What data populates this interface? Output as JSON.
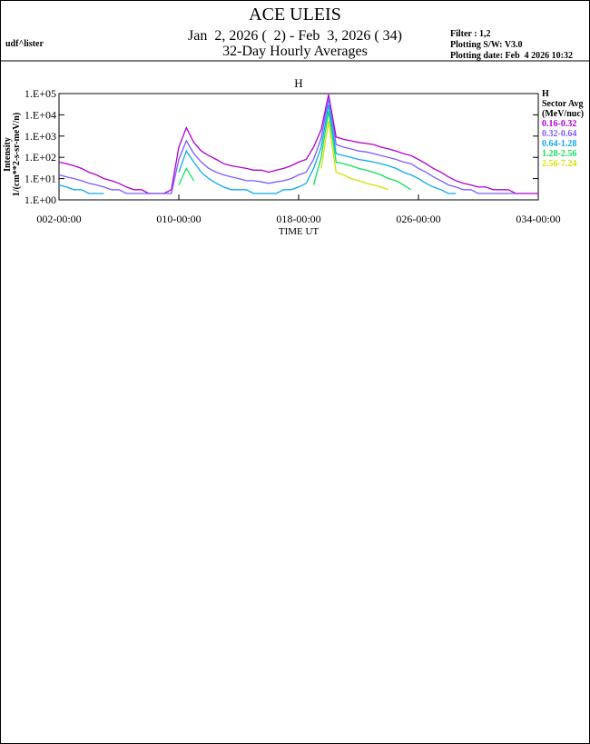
{
  "header": {
    "title": "ACE ULEIS",
    "date_range": "Jan  2, 2026 (  2) - Feb  3, 2026 ( 34)",
    "subtitle": "32-Day Hourly Averages",
    "user": "udf^lister",
    "filter": "Filter : 1,2",
    "software": "Plotting S/W: V3.0",
    "plot_date": "Plotting date: Feb  4 2026 10:32"
  },
  "chart_data": {
    "type": "line",
    "title": "H",
    "log_y": true,
    "y_label": [
      "Intensity",
      "1/(cm**2-s-sr-meV/n)"
    ],
    "x_label": "TIME UT",
    "legend_title": [
      "H",
      "Sector Avg",
      "(MeV/nuc)"
    ],
    "legend_position": "right",
    "xlim": [
      2,
      34
    ],
    "ylim": [
      1,
      100000
    ],
    "xticks": [
      {
        "value": 2,
        "label": "002-00:00"
      },
      {
        "value": 10,
        "label": "010-00:00"
      },
      {
        "value": 18,
        "label": "018-00:00"
      },
      {
        "value": 26,
        "label": "026-00:00"
      },
      {
        "value": 34,
        "label": "034-00:00"
      }
    ],
    "yticks": [
      {
        "value": 1,
        "label": "1.E+00"
      },
      {
        "value": 10,
        "label": "1.E+01"
      },
      {
        "value": 100,
        "label": "1.E+02"
      },
      {
        "value": 1000,
        "label": "1.E+03"
      },
      {
        "value": 10000,
        "label": "1.E+04"
      },
      {
        "value": 100000,
        "label": "1.E+05"
      }
    ],
    "x": [
      2,
      2.5,
      3,
      3.5,
      4,
      4.5,
      5,
      5.5,
      6,
      6.5,
      7,
      7.5,
      8,
      8.5,
      9,
      9.5,
      10,
      10.5,
      11,
      11.5,
      12,
      12.5,
      13,
      13.5,
      14,
      14.5,
      15,
      15.5,
      16,
      16.5,
      17,
      17.5,
      18,
      18.5,
      19,
      19.5,
      20,
      20.5,
      21,
      21.5,
      22,
      22.5,
      23,
      23.5,
      24,
      24.5,
      25,
      25.5,
      26,
      26.5,
      27,
      27.5,
      28,
      28.5,
      29,
      29.5,
      30,
      30.5,
      31,
      31.5,
      32,
      32.5,
      33,
      33.5,
      34
    ],
    "series": [
      {
        "name": "0.16-0.32",
        "color": "#b000d0",
        "values": [
          60,
          50,
          40,
          30,
          20,
          15,
          10,
          8,
          6,
          4,
          3,
          3,
          2,
          2,
          2,
          3,
          300,
          2500,
          500,
          200,
          120,
          80,
          50,
          40,
          35,
          30,
          25,
          25,
          20,
          25,
          30,
          40,
          60,
          80,
          300,
          2000,
          90000,
          900,
          700,
          600,
          500,
          450,
          400,
          300,
          250,
          200,
          150,
          120,
          80,
          50,
          30,
          20,
          12,
          8,
          6,
          5,
          4,
          4,
          3,
          3,
          3,
          2,
          2,
          2,
          2
        ]
      },
      {
        "name": "0.32-0.64",
        "color": "#7a5cff",
        "values": [
          15,
          12,
          10,
          8,
          6,
          5,
          4,
          3,
          3,
          2,
          2,
          2,
          2,
          2,
          2,
          2,
          80,
          600,
          150,
          60,
          30,
          20,
          15,
          12,
          10,
          8,
          8,
          7,
          6,
          7,
          8,
          10,
          15,
          20,
          80,
          800,
          60000,
          400,
          300,
          250,
          200,
          180,
          150,
          120,
          100,
          80,
          60,
          50,
          30,
          20,
          12,
          8,
          5,
          4,
          3,
          3,
          2,
          2,
          2,
          2,
          2,
          2,
          null,
          null,
          null
        ]
      },
      {
        "name": "0.64-1.28",
        "color": "#10a8f0",
        "values": [
          5,
          4,
          3,
          3,
          2,
          2,
          2,
          null,
          null,
          null,
          null,
          null,
          null,
          null,
          null,
          null,
          20,
          200,
          60,
          20,
          10,
          6,
          4,
          3,
          3,
          3,
          2,
          2,
          2,
          2,
          3,
          3,
          4,
          6,
          30,
          300,
          30000,
          150,
          120,
          100,
          80,
          70,
          60,
          50,
          40,
          30,
          20,
          15,
          10,
          6,
          4,
          3,
          2,
          2,
          null,
          null,
          null,
          null,
          null,
          null,
          null,
          null,
          null,
          null,
          null
        ]
      },
      {
        "name": "1.28-2.56",
        "color": "#10e060",
        "values": [
          null,
          null,
          null,
          null,
          null,
          null,
          null,
          null,
          null,
          null,
          null,
          null,
          null,
          null,
          null,
          null,
          5,
          30,
          8,
          null,
          null,
          null,
          null,
          null,
          null,
          null,
          null,
          null,
          null,
          null,
          null,
          null,
          null,
          null,
          5,
          100,
          15000,
          60,
          50,
          40,
          30,
          25,
          20,
          15,
          10,
          8,
          5,
          3,
          null,
          null,
          null,
          null,
          null,
          null,
          null,
          null,
          null,
          null,
          null,
          null,
          null,
          null,
          null,
          null,
          null
        ]
      },
      {
        "name": "2.56-7.24",
        "color": "#d8e000",
        "values": [
          null,
          null,
          null,
          null,
          null,
          null,
          null,
          null,
          null,
          null,
          null,
          null,
          null,
          null,
          null,
          null,
          null,
          null,
          null,
          null,
          null,
          null,
          null,
          null,
          null,
          null,
          null,
          null,
          null,
          null,
          null,
          null,
          null,
          null,
          null,
          30,
          5000,
          20,
          15,
          10,
          8,
          6,
          5,
          4,
          3,
          null,
          null,
          null,
          null,
          null,
          null,
          null,
          null,
          null,
          null,
          null,
          null,
          null,
          null,
          null,
          null,
          null,
          null,
          null,
          null
        ]
      }
    ]
  }
}
